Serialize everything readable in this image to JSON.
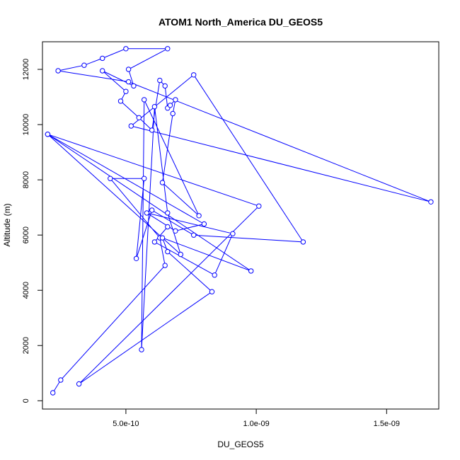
{
  "chart_data": {
    "type": "line",
    "title": "ATOM1 North_America DU_GEOS5",
    "xlabel": "DU_GEOS5",
    "ylabel": "Altitude (m)",
    "xlim": [
      1.8e-10,
      1.7e-09
    ],
    "ylim": [
      -300,
      13000
    ],
    "x_ticks": [
      5e-10,
      1e-09,
      1.5e-09
    ],
    "x_tick_labels": [
      "5.0e-10",
      "1.0e-09",
      "1.5e-09"
    ],
    "y_ticks": [
      0,
      2000,
      4000,
      6000,
      8000,
      10000,
      12000
    ],
    "y_tick_labels": [
      "0",
      "2000",
      "4000",
      "6000",
      "8000",
      "10000",
      "12000"
    ],
    "series_color": "#0000ff",
    "marker": "open-circle",
    "grid": false,
    "series": [
      {
        "x": [
          2.2e-10,
          2.5e-10,
          6.5e-10,
          6.3e-10,
          4.4e-10,
          5.7e-10,
          5.4e-10,
          6e-10,
          7.6e-10,
          1.18e-09,
          7.6e-10,
          5.2e-10,
          1.67e-09,
          5.1e-10,
          2.4e-10,
          3.4e-10,
          4.1e-10,
          5e-10,
          6.6e-10,
          5.1e-10,
          5.3e-10,
          4.1e-10,
          5e-10,
          4.8e-10,
          5.5e-10,
          6e-10,
          6.3e-10,
          6.5e-10,
          6.6e-10,
          6.7e-10,
          6.9e-10,
          6.8e-10,
          6.4e-10,
          7.8e-10,
          5.7e-10,
          5.6e-10,
          6.1e-10,
          6.6e-10,
          7.1e-10,
          2e-10,
          9.8e-10,
          6.4e-10,
          6.6e-10,
          8.3e-10,
          3.2e-10,
          1.01e-09,
          2e-10,
          8e-10,
          6.9e-10,
          5.8e-10,
          9.1e-10,
          8.4e-10,
          6.1e-10,
          6.6e-10
        ]
      }
    ]
  }
}
